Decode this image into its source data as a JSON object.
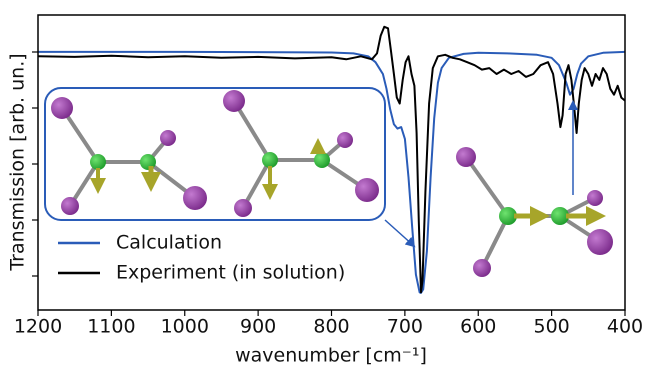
{
  "chart_data": {
    "type": "line",
    "xlabel": "wavenumber [cm⁻¹]",
    "ylabel": "Transmission [arb. un.]",
    "xlim": [
      1200,
      400
    ],
    "ylim": [
      0,
      1
    ],
    "xticks": [
      1200,
      1100,
      1000,
      900,
      800,
      700,
      600,
      500,
      400
    ],
    "series": [
      {
        "name": "Calculation",
        "color": "#2a5cb8",
        "x": [
          1200,
          1000,
          800,
          770,
          750,
          740,
          730,
          725,
          720,
          715,
          710,
          705,
          700,
          695,
          690,
          685,
          680,
          678,
          675,
          670,
          665,
          660,
          655,
          650,
          640,
          620,
          600,
          560,
          520,
          500,
          490,
          480,
          475,
          470,
          465,
          460,
          450,
          430,
          400
        ],
        "values": [
          0.875,
          0.875,
          0.873,
          0.87,
          0.86,
          0.84,
          0.8,
          0.75,
          0.68,
          0.63,
          0.615,
          0.62,
          0.58,
          0.45,
          0.28,
          0.12,
          0.06,
          0.058,
          0.07,
          0.2,
          0.45,
          0.65,
          0.77,
          0.82,
          0.855,
          0.868,
          0.872,
          0.87,
          0.865,
          0.855,
          0.83,
          0.77,
          0.73,
          0.75,
          0.8,
          0.835,
          0.86,
          0.872,
          0.875
        ]
      },
      {
        "name": "Experiment (in solution)",
        "color": "#000000",
        "x": [
          1200,
          1150,
          1100,
          1050,
          1000,
          950,
          900,
          850,
          800,
          780,
          760,
          745,
          738,
          733,
          728,
          723,
          719,
          715,
          711,
          707,
          703,
          699,
          695,
          691,
          687,
          684,
          681,
          678,
          676,
          672,
          667,
          662,
          655,
          645,
          635,
          625,
          615,
          605,
          595,
          585,
          575,
          565,
          555,
          545,
          535,
          525,
          515,
          505,
          498,
          492,
          488,
          485,
          481,
          477,
          473,
          469,
          466,
          463,
          459,
          455,
          450,
          445,
          440,
          435,
          430,
          425,
          420,
          415,
          410,
          405,
          400
        ],
        "values": [
          0.86,
          0.858,
          0.862,
          0.857,
          0.86,
          0.855,
          0.858,
          0.853,
          0.857,
          0.85,
          0.86,
          0.85,
          0.87,
          0.93,
          0.96,
          0.955,
          0.88,
          0.8,
          0.72,
          0.7,
          0.78,
          0.84,
          0.86,
          0.8,
          0.76,
          0.6,
          0.3,
          0.06,
          0.1,
          0.4,
          0.7,
          0.82,
          0.86,
          0.865,
          0.855,
          0.85,
          0.84,
          0.83,
          0.815,
          0.82,
          0.8,
          0.815,
          0.8,
          0.81,
          0.79,
          0.8,
          0.83,
          0.84,
          0.8,
          0.7,
          0.62,
          0.66,
          0.8,
          0.83,
          0.78,
          0.68,
          0.6,
          0.7,
          0.78,
          0.82,
          0.8,
          0.76,
          0.8,
          0.78,
          0.82,
          0.8,
          0.75,
          0.73,
          0.76,
          0.72,
          0.71
        ]
      }
    ]
  }
}
